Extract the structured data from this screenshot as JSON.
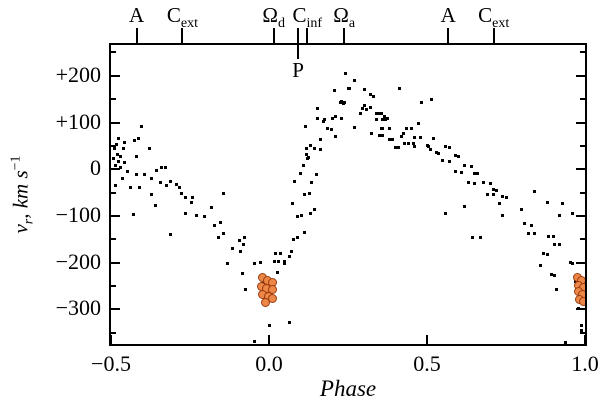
{
  "figure": {
    "background": "#ffffff",
    "frame_color": "#000000",
    "point_color": "#000000",
    "highlight_fill": "#ed8747",
    "highlight_stroke": "#9c3c10"
  },
  "chart_data": {
    "type": "scatter",
    "title": "",
    "xlabel": "Phase",
    "ylabel_parts": {
      "var": "v",
      "var_sub": "r",
      "separator": ",  ",
      "unit": "km s",
      "unit_sup": "−1"
    },
    "xlim": [
      -0.5,
      1.0
    ],
    "ylim": [
      -374,
      266
    ],
    "grid": false,
    "legend": "none",
    "x_major_ticks": [
      -0.5,
      0.0,
      0.5,
      1.0
    ],
    "x_tick_labels": [
      "−0.5",
      "0.0",
      "0.5",
      "1.0"
    ],
    "y_major_ticks": [
      200,
      100,
      0,
      -100,
      -200,
      -300
    ],
    "y_tick_labels": [
      "+200",
      "+100",
      "0",
      "−100",
      "−200",
      "−300"
    ],
    "y_minor_ticks": [
      250,
      150,
      50,
      -50,
      -150,
      -250,
      -350
    ],
    "top_axis_ticks": [
      -0.419,
      -0.274,
      0.015,
      0.092,
      0.121,
      0.238,
      0.567,
      0.711
    ],
    "top_axis_labels": [
      {
        "main": "A",
        "sub": "",
        "phase": -0.419
      },
      {
        "main": "C",
        "sub": "ext",
        "phase": -0.274
      },
      {
        "main": "Ω",
        "sub": "d",
        "phase": 0.015
      },
      {
        "main": "C",
        "sub": "inf",
        "phase": 0.121
      },
      {
        "main": "Ω",
        "sub": "a",
        "phase": 0.238
      },
      {
        "main": "A",
        "sub": "",
        "phase": 0.567
      },
      {
        "main": "C",
        "sub": "ext",
        "phase": 0.711
      }
    ],
    "periastron_marker": {
      "label": "P",
      "phase": 0.092
    },
    "series": [
      {
        "name": "radial-velocity-measurements",
        "marker": "square",
        "color": "#000000",
        "points": [
          [
            -0.475,
            66
          ],
          [
            -0.49,
            45
          ],
          [
            -0.462,
            45
          ],
          [
            -0.481,
            32
          ],
          [
            -0.47,
            28
          ],
          [
            -0.493,
            23
          ],
          [
            -0.477,
            17
          ],
          [
            -0.456,
            15
          ],
          [
            -0.487,
            9
          ],
          [
            -0.471,
            4
          ],
          [
            -0.447,
            -4
          ],
          [
            -0.425,
            62
          ],
          [
            -0.412,
            66
          ],
          [
            -0.403,
            91
          ],
          [
            -0.465,
            -19
          ],
          [
            -0.487,
            -34
          ],
          [
            -0.437,
            -40
          ],
          [
            -0.409,
            -40
          ],
          [
            -0.418,
            28
          ],
          [
            -0.418,
            -11
          ],
          [
            -0.393,
            -11
          ],
          [
            -0.428,
            -96
          ],
          [
            -0.483,
            52
          ],
          [
            -0.458,
            57
          ],
          [
            -0.378,
            45
          ],
          [
            -0.372,
            -19
          ],
          [
            -0.356,
            -2
          ],
          [
            -0.34,
            4
          ],
          [
            -0.327,
            4
          ],
          [
            -0.371,
            -55
          ],
          [
            -0.343,
            -28
          ],
          [
            -0.324,
            -34
          ],
          [
            -0.311,
            -26
          ],
          [
            -0.292,
            -32
          ],
          [
            -0.283,
            -40
          ],
          [
            -0.277,
            -51
          ],
          [
            -0.264,
            -60
          ],
          [
            -0.243,
            -60
          ],
          [
            -0.359,
            -77
          ],
          [
            -0.246,
            -72
          ],
          [
            -0.183,
            -81
          ],
          [
            -0.264,
            -94
          ],
          [
            -0.23,
            -98
          ],
          [
            -0.205,
            -102
          ],
          [
            -0.312,
            -140
          ],
          [
            -0.171,
            -121
          ],
          [
            -0.155,
            -113
          ],
          [
            -0.145,
            -138
          ],
          [
            -0.161,
            -145
          ],
          [
            -0.145,
            -51
          ],
          [
            -0.114,
            -170
          ],
          [
            -0.092,
            -153
          ],
          [
            -0.089,
            -177
          ],
          [
            -0.077,
            -147
          ],
          [
            -0.08,
            -160
          ],
          [
            -0.13,
            -202
          ],
          [
            -0.083,
            -223
          ],
          [
            -0.045,
            -202
          ],
          [
            -0.026,
            -200
          ],
          [
            -0.073,
            -257
          ],
          [
            -0.007,
            -234
          ],
          [
            0.017,
            -198
          ],
          [
            0.03,
            -198
          ],
          [
            0.048,
            -198
          ],
          [
            0.02,
            -180
          ],
          [
            0.037,
            -180
          ],
          [
            0.064,
            -187
          ],
          [
            0.05,
            -202
          ],
          [
            0.027,
            -221
          ],
          [
            0.071,
            -177
          ],
          [
            -0.046,
            -368
          ],
          [
            0.002,
            -334
          ],
          [
            0.065,
            -329
          ],
          [
            -0.02,
            -245
          ],
          [
            0.0,
            -260
          ],
          [
            -0.01,
            -278
          ],
          [
            0.077,
            -150
          ],
          [
            0.09,
            -147
          ],
          [
            0.112,
            -136
          ],
          [
            0.09,
            -102
          ],
          [
            0.104,
            -98
          ],
          [
            0.131,
            -94
          ],
          [
            0.143,
            -87
          ],
          [
            0.074,
            -74
          ],
          [
            0.112,
            -55
          ],
          [
            0.127,
            -51
          ],
          [
            0.134,
            -28
          ],
          [
            0.15,
            -11
          ],
          [
            0.109,
            9
          ],
          [
            0.121,
            23
          ],
          [
            0.143,
            45
          ],
          [
            0.162,
            64
          ],
          [
            0.099,
            -9
          ],
          [
            0.081,
            -26
          ],
          [
            0.12,
            32
          ],
          [
            0.125,
            26
          ],
          [
            0.13,
            51
          ],
          [
            0.12,
            45
          ],
          [
            0.115,
            91
          ],
          [
            0.153,
            109
          ],
          [
            0.153,
            130
          ],
          [
            0.162,
            43
          ],
          [
            0.172,
            102
          ],
          [
            0.184,
            87
          ],
          [
            0.175,
            106
          ],
          [
            0.2,
            109
          ],
          [
            0.197,
            85
          ],
          [
            0.209,
            113
          ],
          [
            0.225,
            143
          ],
          [
            0.228,
            109
          ],
          [
            0.23,
            146
          ],
          [
            0.235,
            140
          ],
          [
            0.238,
            143
          ],
          [
            0.241,
            206
          ],
          [
            0.253,
            172
          ],
          [
            0.256,
            172
          ],
          [
            0.269,
            191
          ],
          [
            0.272,
            89
          ],
          [
            0.206,
            168
          ],
          [
            0.209,
            70
          ],
          [
            0.303,
            170
          ],
          [
            0.303,
            136
          ],
          [
            0.31,
            128
          ],
          [
            0.297,
            130
          ],
          [
            0.32,
            132
          ],
          [
            0.325,
            77
          ],
          [
            0.29,
            120
          ],
          [
            0.32,
            160
          ],
          [
            0.33,
            155
          ],
          [
            0.34,
            120
          ],
          [
            0.35,
            120
          ],
          [
            0.34,
            106
          ],
          [
            0.36,
            106
          ],
          [
            0.37,
            106
          ],
          [
            0.357,
            119
          ],
          [
            0.365,
            113
          ],
          [
            0.375,
            109
          ],
          [
            0.357,
            87
          ],
          [
            0.36,
            88
          ],
          [
            0.38,
            88
          ],
          [
            0.35,
            72
          ],
          [
            0.36,
            72
          ],
          [
            0.38,
            63
          ],
          [
            0.39,
            63
          ],
          [
            0.4,
            47
          ],
          [
            0.41,
            47
          ],
          [
            0.413,
            172
          ],
          [
            0.435,
            88
          ],
          [
            0.45,
            88
          ],
          [
            0.43,
            55
          ],
          [
            0.44,
            55
          ],
          [
            0.46,
            68
          ],
          [
            0.48,
            68
          ],
          [
            0.472,
            98
          ],
          [
            0.482,
            143
          ],
          [
            0.457,
            55
          ],
          [
            0.46,
            49
          ],
          [
            0.42,
            70
          ],
          [
            0.425,
            77
          ],
          [
            0.5,
            50
          ],
          [
            0.505,
            48
          ],
          [
            0.51,
            42
          ],
          [
            0.513,
            149
          ],
          [
            0.52,
            66
          ],
          [
            0.53,
            35
          ],
          [
            0.535,
            33
          ],
          [
            0.56,
            48
          ],
          [
            0.57,
            46
          ],
          [
            0.55,
            19
          ],
          [
            0.57,
            17
          ],
          [
            0.59,
            30
          ],
          [
            0.6,
            28
          ],
          [
            0.59,
            -5
          ],
          [
            0.61,
            -7
          ],
          [
            0.62,
            8
          ],
          [
            0.64,
            6
          ],
          [
            0.65,
            -8
          ],
          [
            0.66,
            -10
          ],
          [
            0.63,
            -29
          ],
          [
            0.65,
            -31
          ],
          [
            0.68,
            -29
          ],
          [
            0.7,
            -31
          ],
          [
            0.71,
            -43
          ],
          [
            0.72,
            -45
          ],
          [
            0.69,
            -53
          ],
          [
            0.71,
            -55
          ],
          [
            0.74,
            -58
          ],
          [
            0.75,
            -60
          ],
          [
            0.56,
            -94
          ],
          [
            0.62,
            -79
          ],
          [
            0.645,
            -145
          ],
          [
            0.67,
            -145
          ],
          [
            0.73,
            -74
          ],
          [
            0.74,
            -100
          ],
          [
            0.8,
            -87
          ],
          [
            0.81,
            -117
          ],
          [
            0.83,
            -121
          ],
          [
            0.84,
            -47
          ],
          [
            0.88,
            -72
          ],
          [
            0.93,
            -74
          ],
          [
            0.96,
            -94
          ],
          [
            0.92,
            -100
          ],
          [
            0.82,
            -138
          ],
          [
            0.84,
            -138
          ],
          [
            0.885,
            -143
          ],
          [
            0.9,
            -143
          ],
          [
            0.905,
            -160
          ],
          [
            0.92,
            -162
          ],
          [
            0.87,
            -180
          ],
          [
            0.88,
            -182
          ],
          [
            0.86,
            -206
          ],
          [
            0.895,
            -226
          ],
          [
            0.905,
            -228
          ],
          [
            0.955,
            -200
          ],
          [
            0.96,
            -202
          ],
          [
            0.91,
            -257
          ],
          [
            0.978,
            -298
          ],
          [
            0.99,
            -334
          ],
          [
            0.99,
            -345
          ],
          [
            0.937,
            -370
          ],
          [
            0.97,
            -240
          ],
          [
            0.985,
            -255
          ]
        ]
      },
      {
        "name": "highlighted-measurements",
        "marker": "circle",
        "fill": "#ed8747",
        "stroke": "#9c3c10",
        "points": [
          [
            -0.022,
            -232
          ],
          [
            -0.005,
            -238
          ],
          [
            0.01,
            -242
          ],
          [
            -0.025,
            -250
          ],
          [
            -0.008,
            -255
          ],
          [
            0.012,
            -258
          ],
          [
            -0.02,
            -268
          ],
          [
            -0.003,
            -272
          ],
          [
            0.01,
            -276
          ],
          [
            -0.012,
            -285
          ],
          [
            0.975,
            -232
          ],
          [
            0.99,
            -238
          ],
          [
            0.98,
            -248
          ],
          [
            0.995,
            -253
          ],
          [
            0.978,
            -262
          ],
          [
            0.992,
            -268
          ],
          [
            0.982,
            -278
          ],
          [
            0.995,
            -282
          ]
        ]
      }
    ]
  }
}
